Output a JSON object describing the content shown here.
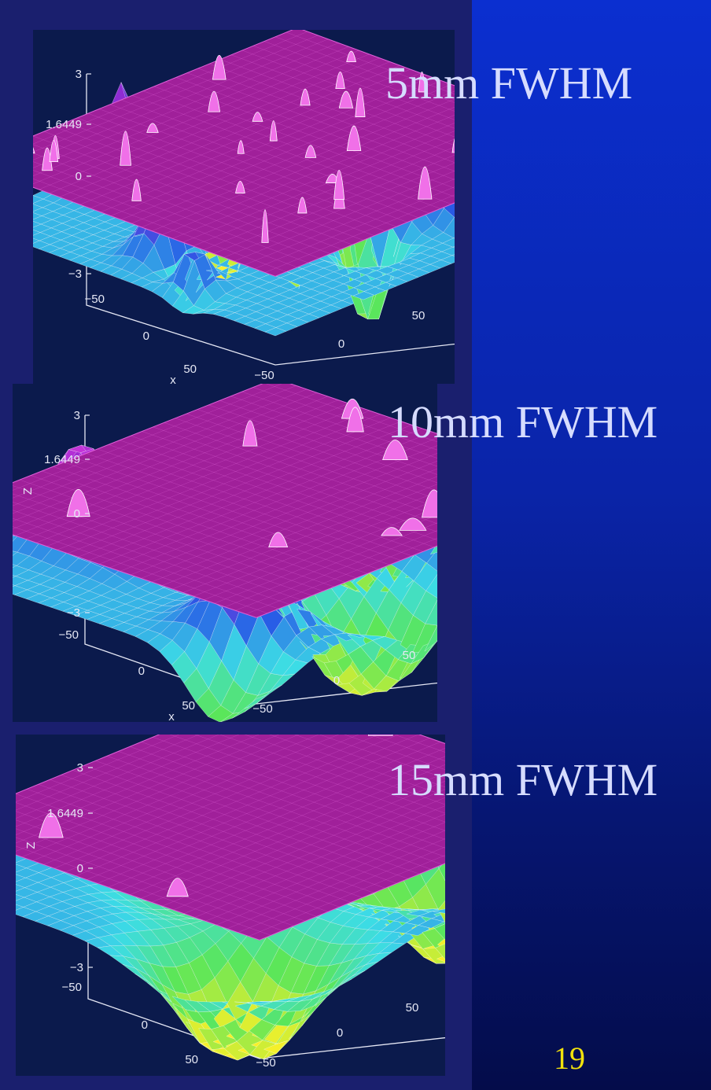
{
  "slide": {
    "page_number": "19"
  },
  "chart_data": [
    {
      "type": "surface",
      "title": "5mm FWHM",
      "threshold": 1.6449,
      "zlabel": "",
      "xlabel": "x",
      "zlim": [
        -3,
        3
      ],
      "ztick_labels": [
        "3",
        "1.6449",
        "0",
        "−3"
      ],
      "xtick_labels": [
        "−50",
        "0",
        "50"
      ],
      "ytick_labels": [
        "−50",
        "0",
        "50"
      ],
      "xlim": [
        -50,
        50
      ],
      "ylim": [
        -50,
        50
      ],
      "smoothness": 1,
      "peaks_above_threshold": 30
    },
    {
      "type": "surface",
      "title": "10mm FWHM",
      "threshold": 1.6449,
      "zlabel": "Z",
      "xlabel": "x",
      "zlim": [
        -3,
        3
      ],
      "ztick_labels": [
        "3",
        "1.6449",
        "0",
        "−3"
      ],
      "xtick_labels": [
        "−50",
        "0",
        "50"
      ],
      "ytick_labels": [
        "−50",
        "0",
        "50"
      ],
      "xlim": [
        -50,
        50
      ],
      "ylim": [
        -50,
        50
      ],
      "smoothness": 2,
      "peaks_above_threshold": 9
    },
    {
      "type": "surface",
      "title": "15mm FWHM",
      "threshold": 1.6449,
      "zlabel": "Z",
      "xlabel": "",
      "zlim": [
        -3,
        3
      ],
      "ztick_labels": [
        "3",
        "1.6449",
        "0",
        "−3"
      ],
      "xtick_labels": [
        "−50",
        "0",
        "50"
      ],
      "ytick_labels": [
        "−50",
        "0",
        "50"
      ],
      "xlim": [
        -50,
        50
      ],
      "ylim": [
        -50,
        50
      ],
      "smoothness": 3,
      "peaks_above_threshold": 4
    }
  ]
}
